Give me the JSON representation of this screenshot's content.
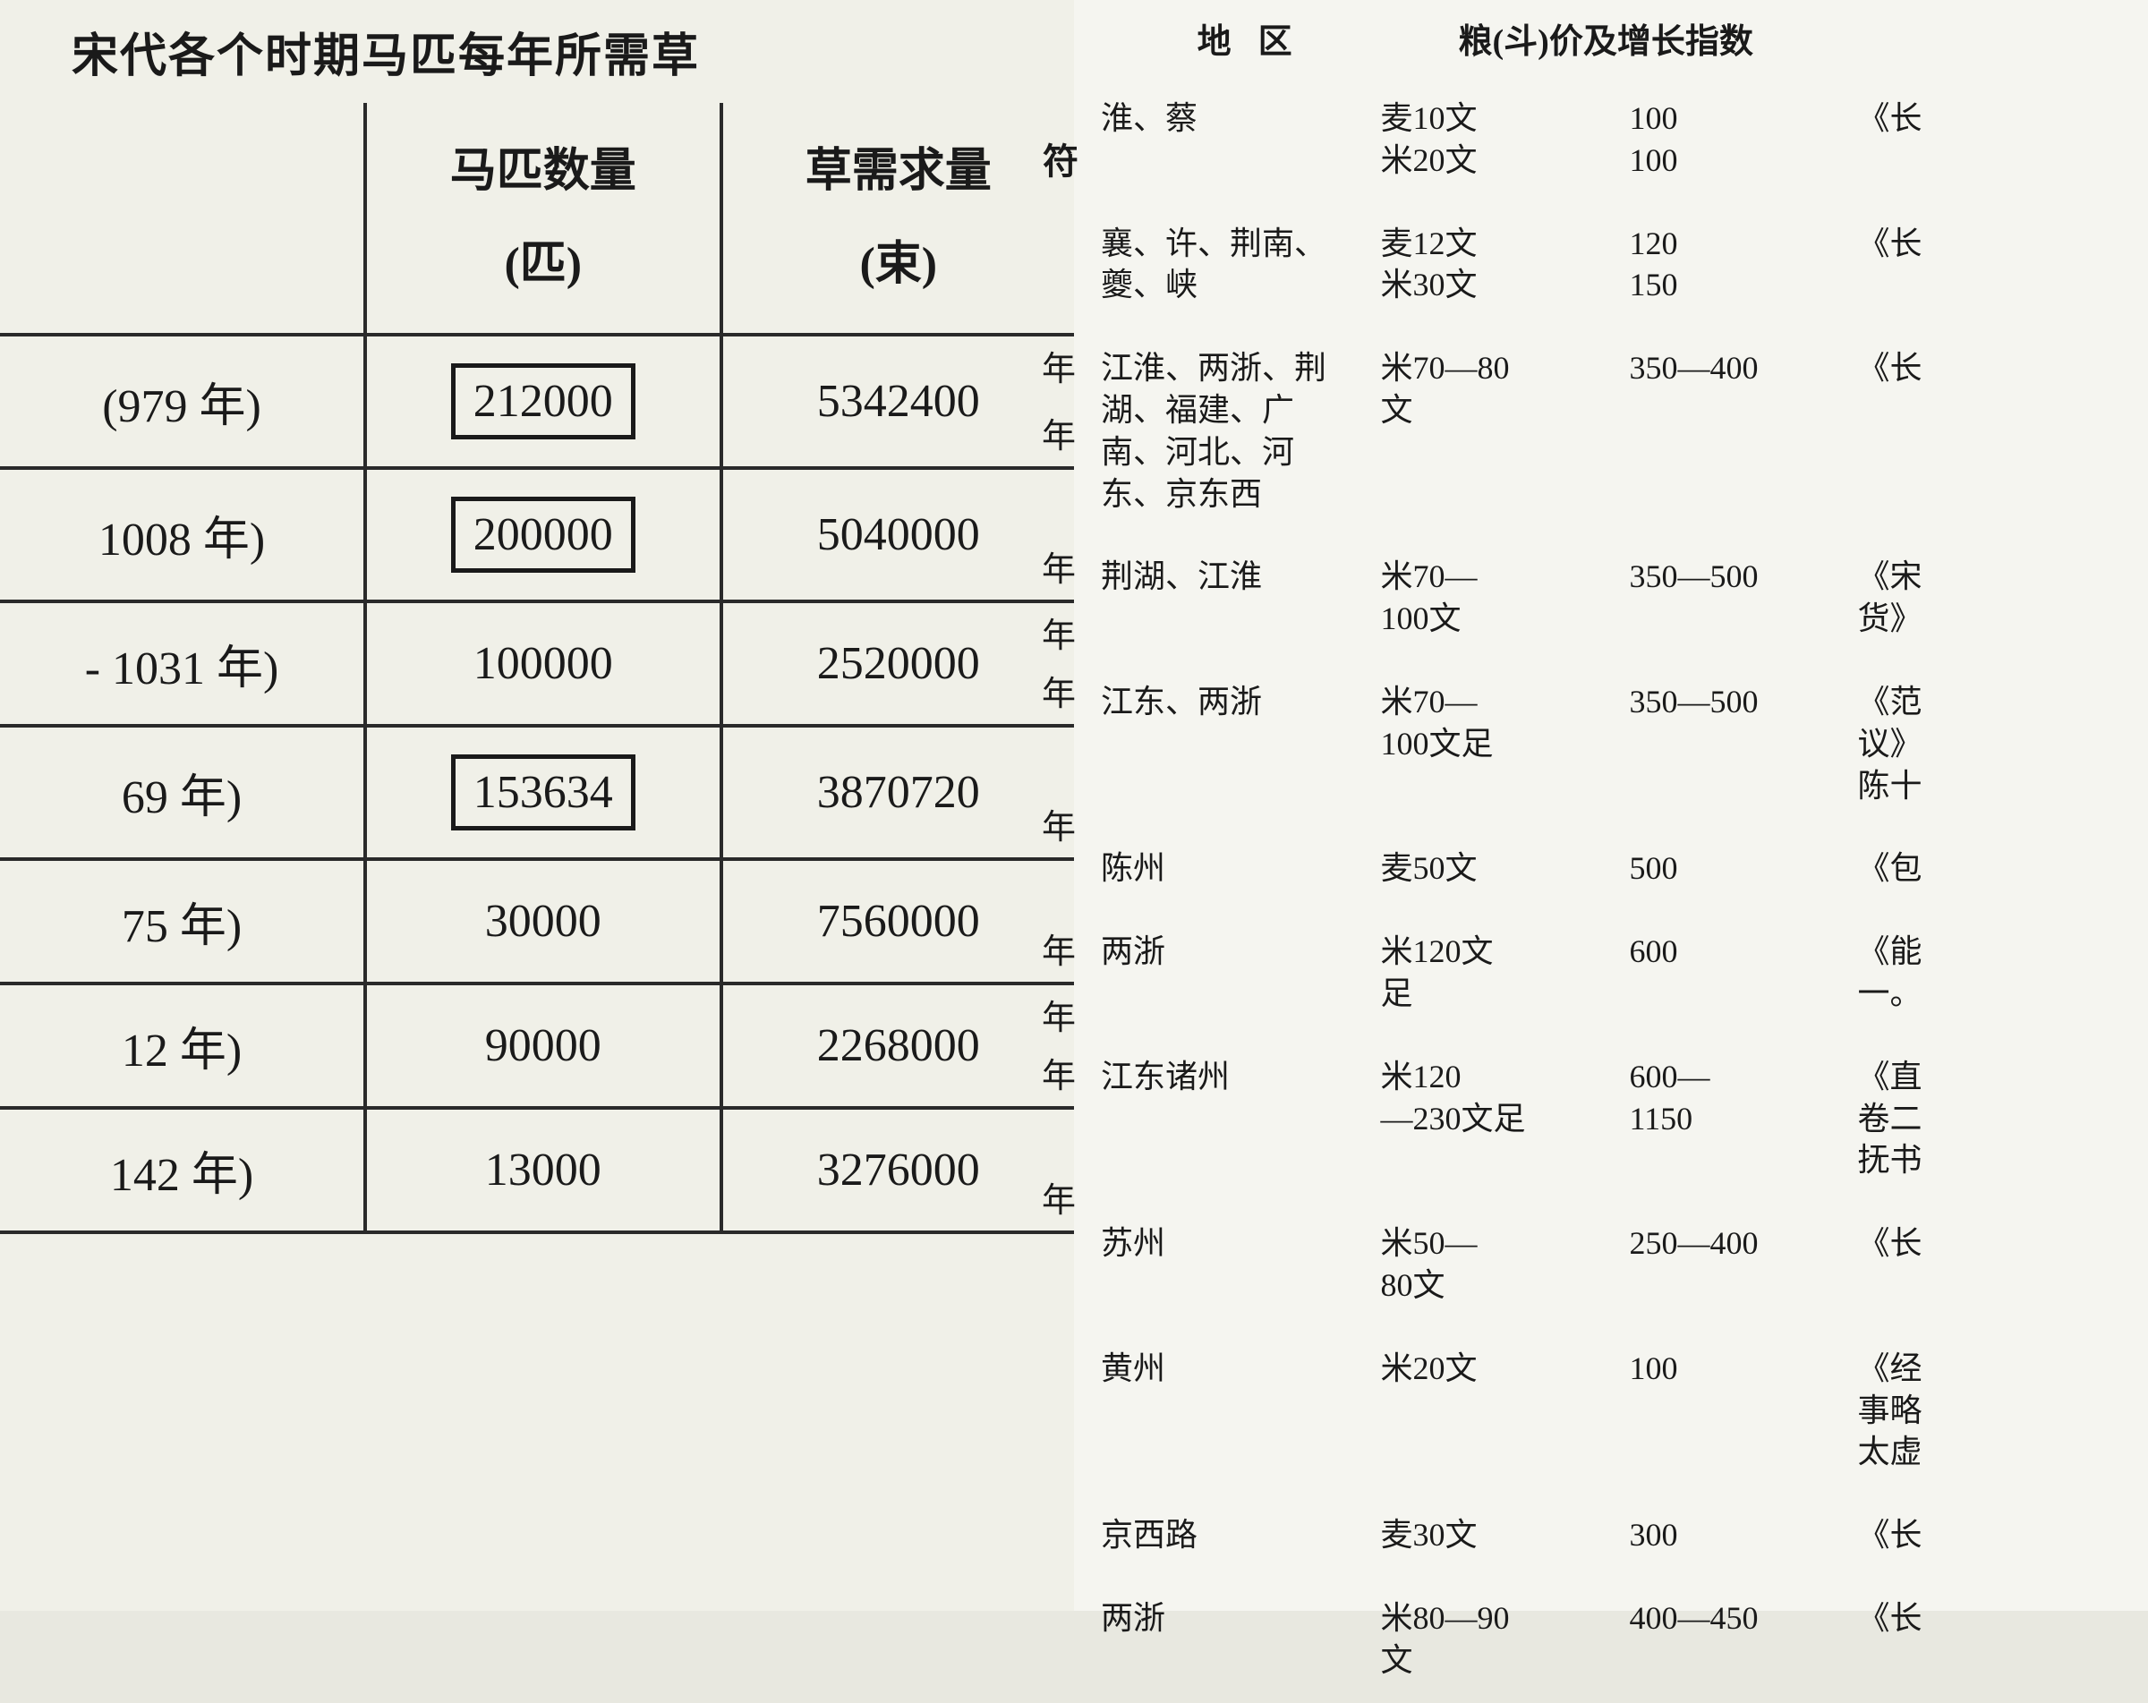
{
  "left": {
    "title": "宋代各个时期马匹每年所需草",
    "header": {
      "col1": "",
      "col2": "马匹数量",
      "col2_unit": "(匹)",
      "col3": "草需求量",
      "col3_unit": "(束)",
      "col3_suffix": "符"
    },
    "rows": [
      {
        "year": "(979 年)",
        "horses": "212000",
        "grass": "5342400",
        "boxed": true,
        "suffix1": "年",
        "suffix2": "年"
      },
      {
        "year": "1008 年)",
        "horses": "200000",
        "grass": "5040000",
        "boxed": true,
        "suffix2": "年"
      },
      {
        "year": "- 1031 年)",
        "horses": "100000",
        "grass": "2520000",
        "boxed": false,
        "suffix1": "年",
        "suffix2": "年"
      },
      {
        "year": "69 年)",
        "horses": "153634",
        "grass": "3870720",
        "boxed": true,
        "suffix2": "年"
      },
      {
        "year": "75 年)",
        "horses": "30000",
        "grass": "7560000",
        "boxed": false,
        "suffix2": "年"
      },
      {
        "year": "12 年)",
        "horses": "90000",
        "grass": "2268000",
        "boxed": false,
        "suffix1": "年",
        "suffix2": "年"
      },
      {
        "year": "142 年)",
        "horses": "13000",
        "grass": "3276000",
        "boxed": false,
        "suffix2": "年"
      }
    ]
  },
  "right": {
    "header": {
      "region": "地区",
      "price": "粮(斗)价及增长指数"
    },
    "rows": [
      {
        "region": "淮、蔡",
        "price": "麦10文\n米20文",
        "index": "100\n100",
        "src": "《长"
      },
      {
        "region": "襄、许、荆南、\n夔、峡",
        "price": "麦12文\n米30文",
        "index": "120\n150",
        "src": "《长"
      },
      {
        "region": "江淮、两浙、荆\n湖、福建、广\n南、河北、河\n东、京东西",
        "price": "米70—80\n文",
        "index": "350—400",
        "src": "《长"
      },
      {
        "region": "荆湖、江淮",
        "price": "米70—\n100文",
        "index": "350—500",
        "src": "《宋\n货》"
      },
      {
        "region": "江东、两浙",
        "price": "米70—\n100文足",
        "index": "350—500",
        "src": "《范\n议》\n陈十"
      },
      {
        "region": "陈州",
        "price": "麦50文",
        "index": "500",
        "src": "《包"
      },
      {
        "region": "两浙",
        "price": "米120文\n足",
        "index": "600",
        "src": "《能\n一。"
      },
      {
        "region": "江东诸州",
        "price": "米120\n—230文足",
        "index": "600—\n1150",
        "src": "《直\n卷二\n抚书"
      },
      {
        "region": "苏州",
        "price": "米50—\n80文",
        "index": "250—400",
        "src": "《长"
      },
      {
        "region": "黄州",
        "price": "米20文",
        "index": "100",
        "src": "《经\n事略\n太虚"
      },
      {
        "region": "京西路",
        "price": "麦30文",
        "index": "300",
        "src": "《长"
      },
      {
        "region": "两浙",
        "price": "米80—90\n文",
        "index": "400—450",
        "src": "《长"
      }
    ]
  },
  "style": {
    "bg_left": "#f0f0e8",
    "bg_right": "#f5f5f0",
    "border_color": "#2a2a2a",
    "text_color": "#1a1a1a",
    "title_fontsize": 52,
    "left_cell_fontsize": 52,
    "right_header_fontsize": 38,
    "right_cell_fontsize": 36
  }
}
